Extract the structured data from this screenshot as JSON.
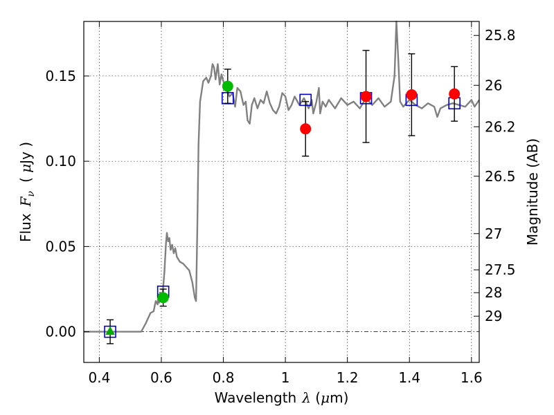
{
  "chart_data": {
    "type": "scatter",
    "xlabel": {
      "prefix": "Wavelength",
      "symbol": "λ",
      "unit_open": " (",
      "unit_symbol": "μ",
      "unit": "m)"
    },
    "ylabel": {
      "prefix": "Flux",
      "symbol": "F",
      "subscript": "ν",
      "unit_open": "( ",
      "unit_symbol": "μ",
      "unit": "Jy )"
    },
    "y2label": "Magnitude (AB)",
    "xlim": [
      0.35,
      1.625
    ],
    "ylim": [
      -0.018,
      0.182
    ],
    "grid": true,
    "x_ticks": [
      {
        "value": 0.4,
        "label": "0.4"
      },
      {
        "value": 0.6,
        "label": "0.6"
      },
      {
        "value": 0.8,
        "label": "0.8"
      },
      {
        "value": 1.0,
        "label": "1"
      },
      {
        "value": 1.2,
        "label": "1.2"
      },
      {
        "value": 1.4,
        "label": "1.4"
      },
      {
        "value": 1.6,
        "label": "1.6"
      }
    ],
    "y_ticks": [
      {
        "value": 0.0,
        "label": "0.00"
      },
      {
        "value": 0.05,
        "label": "0.05"
      },
      {
        "value": 0.1,
        "label": "0.10"
      },
      {
        "value": 0.15,
        "label": "0.15"
      }
    ],
    "y2_ticks": [
      {
        "value": 25.8,
        "label": "25.8"
      },
      {
        "value": 26.0,
        "label": "26"
      },
      {
        "value": 26.2,
        "label": "26.2"
      },
      {
        "value": 26.5,
        "label": "26.5"
      },
      {
        "value": 27.0,
        "label": "27"
      },
      {
        "value": 27.5,
        "label": "27.5"
      },
      {
        "value": 28.0,
        "label": "28"
      },
      {
        "value": 29.0,
        "label": "29"
      }
    ],
    "zero_line": 0.0,
    "spectrum": {
      "color": "#808080",
      "points": [
        [
          0.35,
          0.0
        ],
        [
          0.525,
          0.0
        ],
        [
          0.535,
          0.0
        ],
        [
          0.55,
          0.005
        ],
        [
          0.565,
          0.011
        ],
        [
          0.575,
          0.012
        ],
        [
          0.582,
          0.018
        ],
        [
          0.588,
          0.016
        ],
        [
          0.59,
          0.022
        ],
        [
          0.593,
          0.017
        ],
        [
          0.596,
          0.023
        ],
        [
          0.6,
          0.02
        ],
        [
          0.605,
          0.024
        ],
        [
          0.61,
          0.035
        ],
        [
          0.615,
          0.052
        ],
        [
          0.618,
          0.058
        ],
        [
          0.622,
          0.053
        ],
        [
          0.626,
          0.055
        ],
        [
          0.63,
          0.048
        ],
        [
          0.635,
          0.051
        ],
        [
          0.64,
          0.046
        ],
        [
          0.645,
          0.049
        ],
        [
          0.65,
          0.044
        ],
        [
          0.66,
          0.041
        ],
        [
          0.67,
          0.04
        ],
        [
          0.68,
          0.038
        ],
        [
          0.69,
          0.036
        ],
        [
          0.7,
          0.029
        ],
        [
          0.708,
          0.02
        ],
        [
          0.712,
          0.018
        ],
        [
          0.716,
          0.06
        ],
        [
          0.72,
          0.11
        ],
        [
          0.725,
          0.135
        ],
        [
          0.735,
          0.147
        ],
        [
          0.745,
          0.149
        ],
        [
          0.752,
          0.146
        ],
        [
          0.76,
          0.15
        ],
        [
          0.765,
          0.157
        ],
        [
          0.77,
          0.155
        ],
        [
          0.775,
          0.148
        ],
        [
          0.782,
          0.157
        ],
        [
          0.788,
          0.145
        ],
        [
          0.794,
          0.151
        ],
        [
          0.8,
          0.147
        ],
        [
          0.81,
          0.142
        ],
        [
          0.82,
          0.138
        ],
        [
          0.83,
          0.14
        ],
        [
          0.838,
          0.132
        ],
        [
          0.845,
          0.143
        ],
        [
          0.855,
          0.141
        ],
        [
          0.865,
          0.133
        ],
        [
          0.872,
          0.135
        ],
        [
          0.878,
          0.124
        ],
        [
          0.885,
          0.122
        ],
        [
          0.892,
          0.133
        ],
        [
          0.9,
          0.137
        ],
        [
          0.91,
          0.131
        ],
        [
          0.92,
          0.136
        ],
        [
          0.93,
          0.134
        ],
        [
          0.94,
          0.141
        ],
        [
          0.95,
          0.134
        ],
        [
          0.96,
          0.13
        ],
        [
          0.97,
          0.128
        ],
        [
          0.98,
          0.132
        ],
        [
          0.99,
          0.14
        ],
        [
          1.0,
          0.138
        ],
        [
          1.01,
          0.13
        ],
        [
          1.02,
          0.133
        ],
        [
          1.03,
          0.138
        ],
        [
          1.045,
          0.133
        ],
        [
          1.06,
          0.137
        ],
        [
          1.075,
          0.131
        ],
        [
          1.085,
          0.136
        ],
        [
          1.09,
          0.128
        ],
        [
          1.1,
          0.135
        ],
        [
          1.108,
          0.143
        ],
        [
          1.112,
          0.128
        ],
        [
          1.12,
          0.135
        ],
        [
          1.13,
          0.132
        ],
        [
          1.14,
          0.136
        ],
        [
          1.16,
          0.131
        ],
        [
          1.18,
          0.137
        ],
        [
          1.2,
          0.133
        ],
        [
          1.22,
          0.135
        ],
        [
          1.24,
          0.131
        ],
        [
          1.26,
          0.137
        ],
        [
          1.28,
          0.133
        ],
        [
          1.3,
          0.137
        ],
        [
          1.32,
          0.132
        ],
        [
          1.34,
          0.135
        ],
        [
          1.352,
          0.15
        ],
        [
          1.358,
          0.182
        ],
        [
          1.364,
          0.16
        ],
        [
          1.37,
          0.135
        ],
        [
          1.38,
          0.132
        ],
        [
          1.4,
          0.136
        ],
        [
          1.42,
          0.133
        ],
        [
          1.44,
          0.131
        ],
        [
          1.46,
          0.134
        ],
        [
          1.48,
          0.132
        ],
        [
          1.49,
          0.126
        ],
        [
          1.5,
          0.131
        ],
        [
          1.52,
          0.133
        ],
        [
          1.54,
          0.134
        ],
        [
          1.56,
          0.133
        ],
        [
          1.58,
          0.132
        ],
        [
          1.6,
          0.136
        ],
        [
          1.61,
          0.132
        ],
        [
          1.625,
          0.136
        ]
      ]
    },
    "model_points": {
      "marker": "open-square",
      "color": "#0000cc",
      "points": [
        {
          "x": 0.435,
          "y": 0.0
        },
        {
          "x": 0.606,
          "y": 0.0235
        },
        {
          "x": 0.814,
          "y": 0.137
        },
        {
          "x": 1.065,
          "y": 0.136
        },
        {
          "x": 1.26,
          "y": 0.137
        },
        {
          "x": 1.407,
          "y": 0.136
        },
        {
          "x": 1.545,
          "y": 0.134
        }
      ]
    },
    "observed_points": [
      {
        "x": 0.435,
        "y": 0.0,
        "err": 0.007,
        "marker": "triangle",
        "color": "#00aa00"
      },
      {
        "x": 0.606,
        "y": 0.02,
        "err": 0.005,
        "marker": "circle",
        "color": "#00bb00"
      },
      {
        "x": 0.814,
        "y": 0.144,
        "err": 0.01,
        "marker": "circle",
        "color": "#00bb00"
      },
      {
        "x": 1.065,
        "y": 0.119,
        "err": 0.016,
        "marker": "circle",
        "color": "#ff0000"
      },
      {
        "x": 1.26,
        "y": 0.138,
        "err": 0.027,
        "marker": "circle",
        "color": "#ff0000"
      },
      {
        "x": 1.407,
        "y": 0.139,
        "err": 0.024,
        "marker": "circle",
        "color": "#ff0000"
      },
      {
        "x": 1.545,
        "y": 0.1395,
        "err": 0.016,
        "marker": "circle",
        "color": "#ff0000"
      }
    ]
  }
}
